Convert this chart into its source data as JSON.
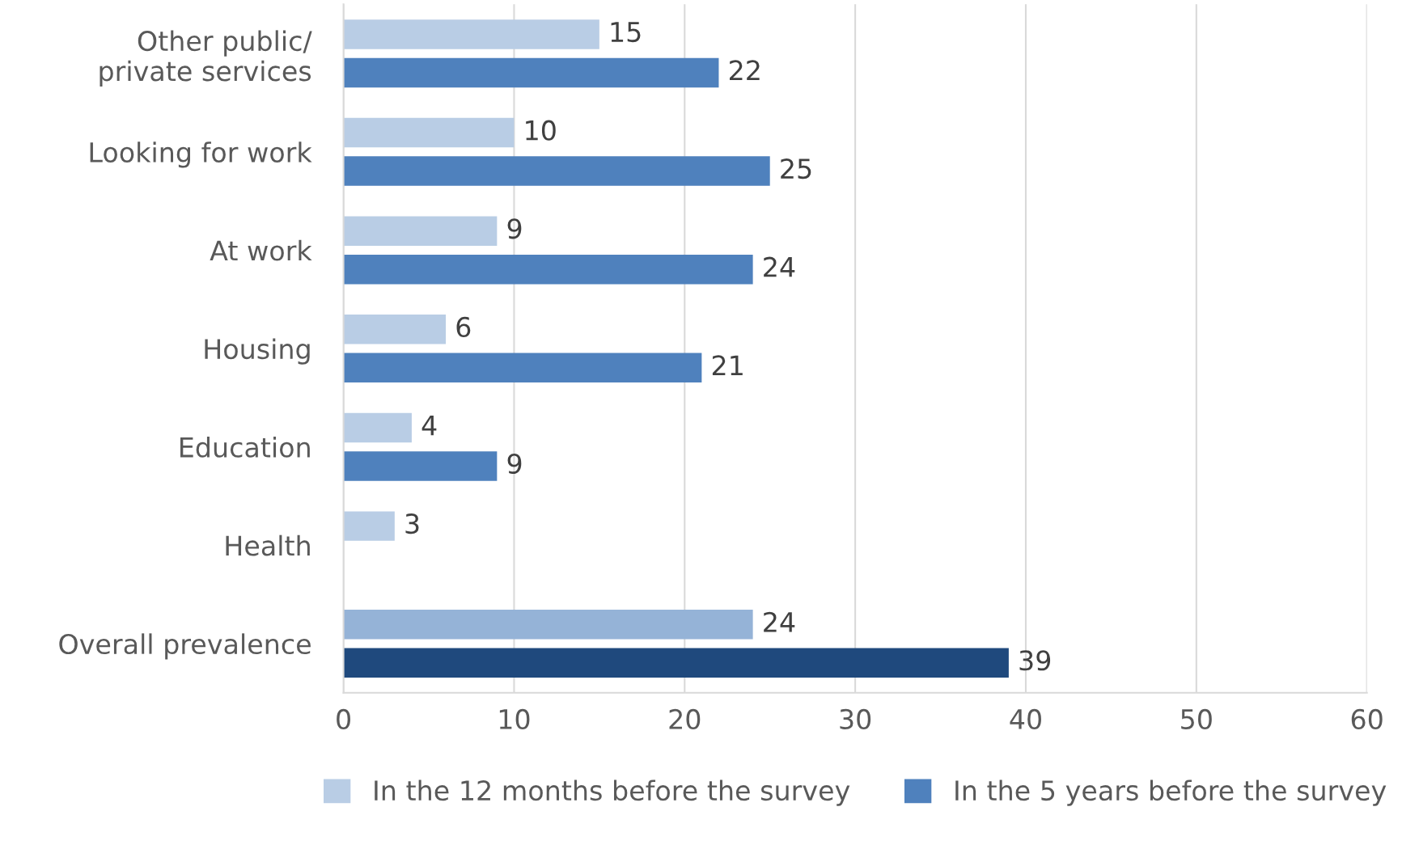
{
  "chart_data": {
    "type": "bar",
    "orientation": "horizontal",
    "categories": [
      "Other public/\nprivate services",
      "Looking for work",
      "At work",
      "Housing",
      "Education",
      "Health",
      "Overall prevalence"
    ],
    "series": [
      {
        "name": "In the 12 months before the survey",
        "color": "#b9cde5",
        "colors": [
          "#b9cde5",
          "#b9cde5",
          "#b9cde5",
          "#b9cde5",
          "#b9cde5",
          "#b9cde5",
          "#95b3d7"
        ],
        "values": [
          15,
          10,
          9,
          6,
          4,
          3,
          24
        ]
      },
      {
        "name": "In the 5 years before the survey",
        "color": "#4f81bd",
        "colors": [
          "#4f81bd",
          "#4f81bd",
          "#4f81bd",
          "#4f81bd",
          "#4f81bd",
          "#4f81bd",
          "#1f497d"
        ],
        "values": [
          22,
          25,
          24,
          21,
          9,
          null,
          39
        ]
      }
    ],
    "xlim": [
      0,
      60
    ],
    "xticks": [
      0,
      10,
      20,
      30,
      40,
      50,
      60
    ],
    "grid": "x",
    "legend": "bottom",
    "data_labels": true
  }
}
